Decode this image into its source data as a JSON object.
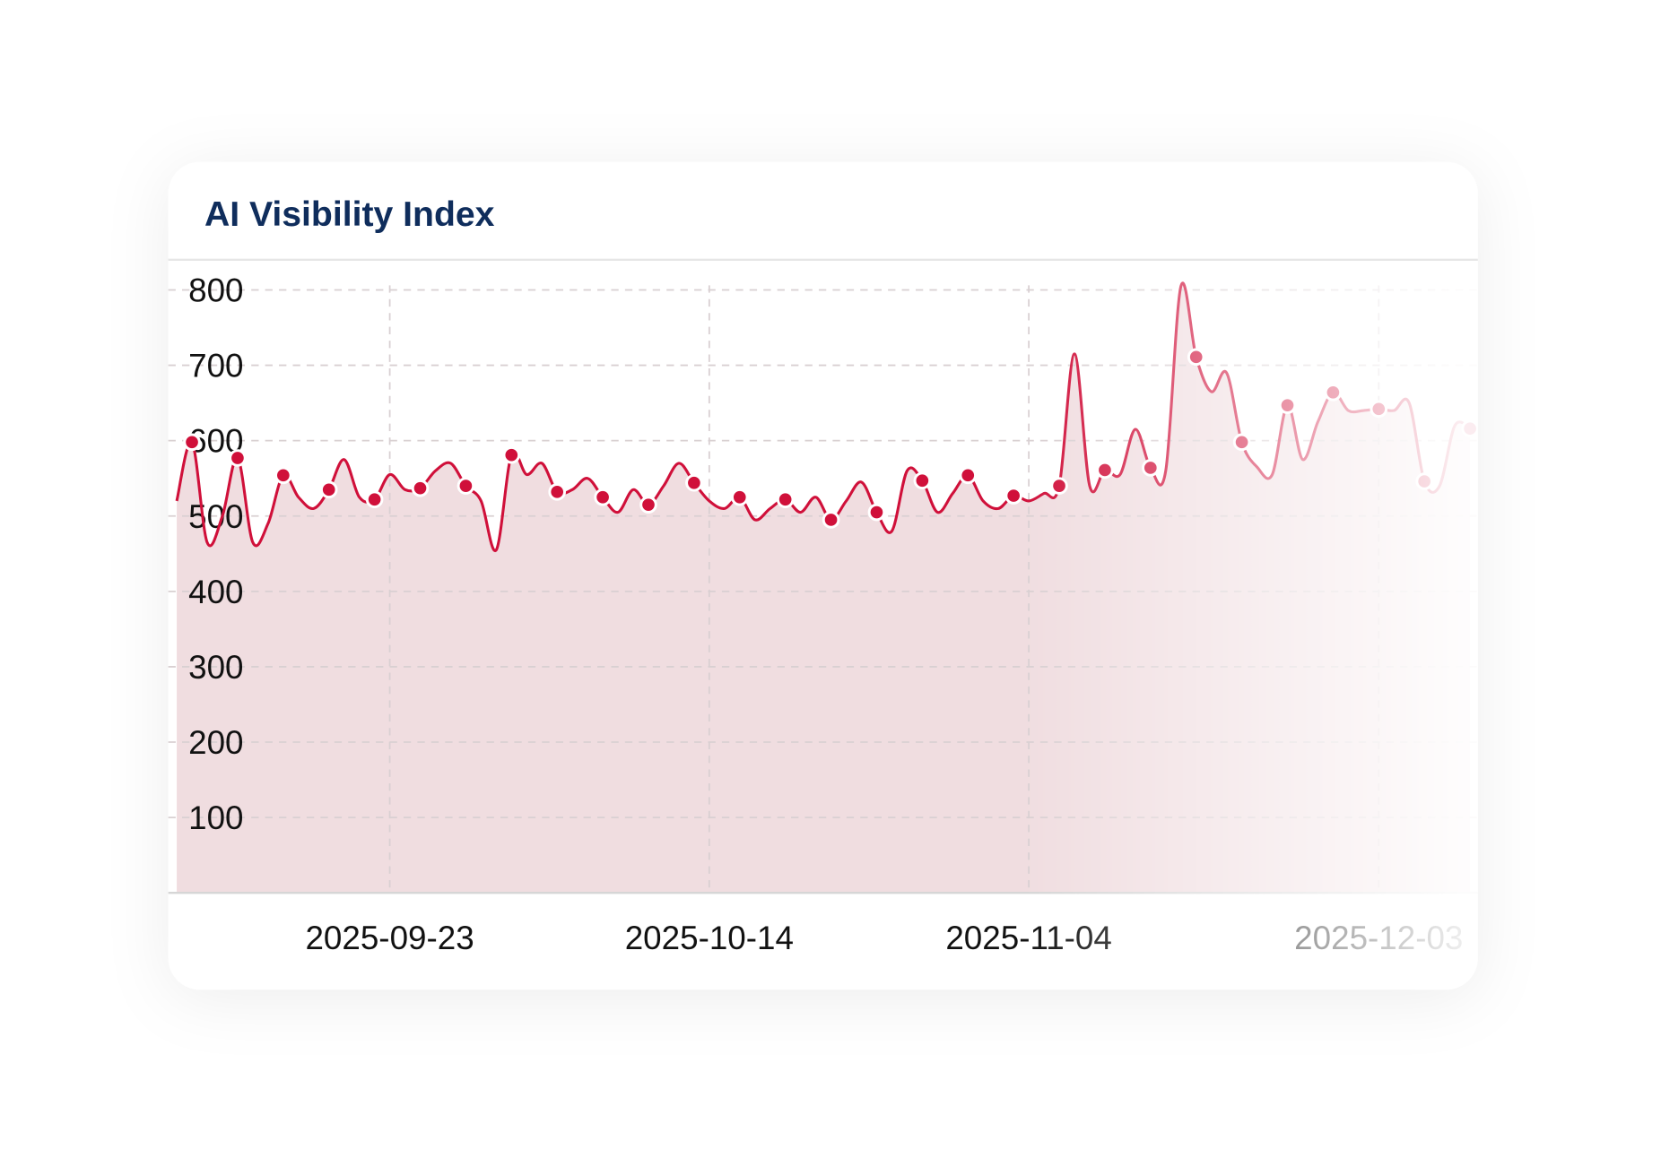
{
  "chart_data": {
    "type": "line",
    "title": "AI Visibility Index",
    "categories": [
      null,
      null,
      null,
      null,
      null,
      null,
      null,
      null,
      null,
      null,
      null,
      null,
      null,
      null,
      "2025-09-23",
      null,
      null,
      null,
      null,
      null,
      null,
      null,
      null,
      null,
      null,
      null,
      null,
      null,
      null,
      null,
      null,
      null,
      null,
      null,
      null,
      "2025-10-14",
      null,
      null,
      null,
      null,
      null,
      null,
      null,
      null,
      null,
      null,
      null,
      null,
      null,
      null,
      null,
      null,
      null,
      null,
      null,
      null,
      "2025-11-04",
      null,
      null,
      null,
      null,
      null,
      null,
      null,
      null,
      null,
      null,
      null,
      null,
      null,
      null,
      null,
      null,
      null,
      null,
      null,
      null,
      null,
      null,
      "2025-12-03",
      null,
      null,
      null,
      null,
      null,
      null
    ],
    "series": [
      {
        "color": "#d0103a",
        "values": [
          520,
          598,
          465,
          500,
          577,
          465,
          490,
          554,
          525,
          510,
          535,
          575,
          525,
          522,
          555,
          535,
          537,
          560,
          570,
          540,
          520,
          455,
          581,
          555,
          570,
          532,
          535,
          550,
          525,
          505,
          535,
          515,
          540,
          570,
          544,
          520,
          510,
          525,
          495,
          510,
          522,
          505,
          525,
          495,
          520,
          545,
          505,
          480,
          560,
          547,
          505,
          530,
          554,
          520,
          510,
          527,
          520,
          530,
          540,
          715,
          540,
          561,
          555,
          615,
          564,
          560,
          805,
          711,
          665,
          690,
          598,
          565,
          555,
          647,
          575,
          625,
          664,
          640,
          640,
          642,
          640,
          650,
          546,
          540,
          620,
          616
        ]
      }
    ],
    "ylim": [
      0,
      840
    ],
    "yticks": [
      100,
      200,
      300,
      400,
      500,
      600,
      700,
      800
    ],
    "grid": true,
    "marker_every": 3,
    "marker_offset": 1,
    "area_color": "#f0dde0"
  }
}
